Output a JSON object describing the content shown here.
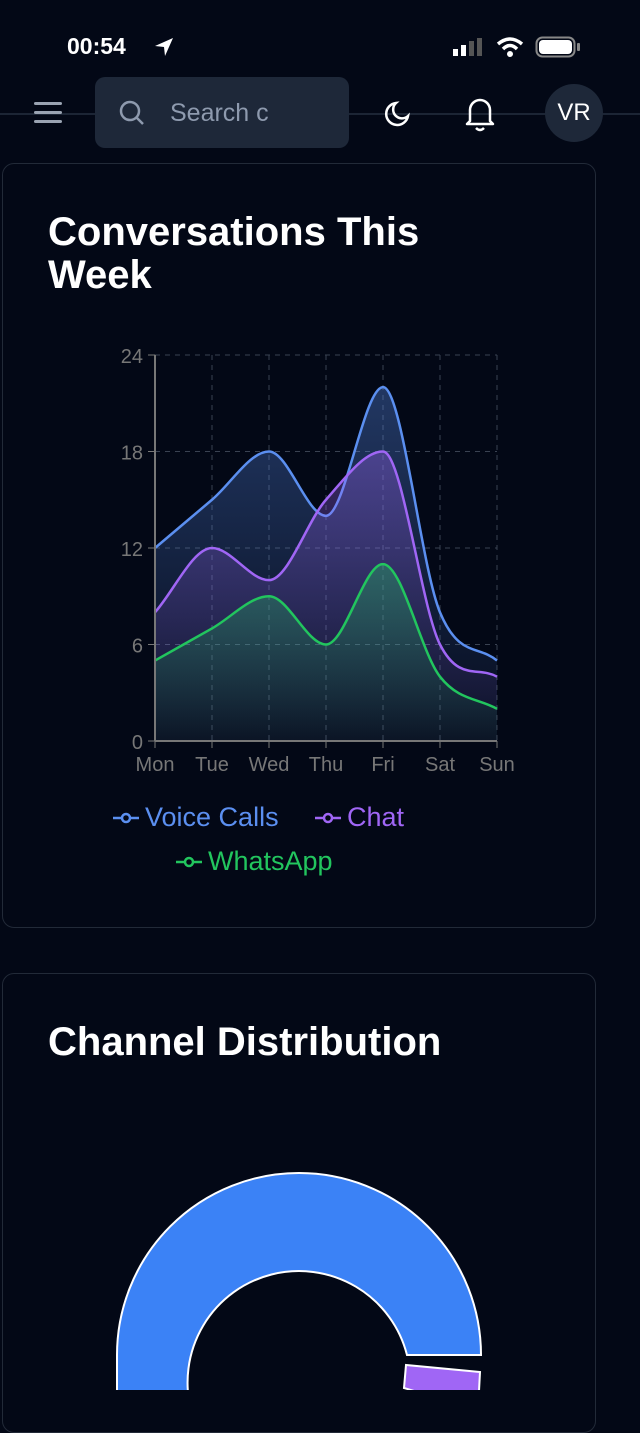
{
  "status_bar": {
    "time": "00:54"
  },
  "header": {
    "search_placeholder": "Search c",
    "avatar_initials": "VR"
  },
  "conversations_card": {
    "title": "Conversations This Week"
  },
  "channel_card": {
    "title": "Channel Distribution"
  },
  "colors": {
    "voice": "#3b82f6",
    "chat": "#a066f5",
    "whatsapp": "#22c55e",
    "background": "#030816"
  },
  "chart_data": [
    {
      "type": "area",
      "title": "Conversations This Week",
      "categories": [
        "Mon",
        "Tue",
        "Wed",
        "Thu",
        "Fri",
        "Sat",
        "Sun"
      ],
      "yticks": [
        "0",
        "6",
        "12",
        "18",
        "24"
      ],
      "ylim": [
        0,
        24
      ],
      "grid": true,
      "legend": "bottom",
      "series": [
        {
          "name": "Voice Calls",
          "color": "#5b8ff0",
          "values": [
            12,
            15,
            18,
            14,
            22,
            8,
            5
          ]
        },
        {
          "name": "Chat",
          "color": "#a066f5",
          "values": [
            8,
            12,
            10,
            15,
            18,
            6,
            4
          ]
        },
        {
          "name": "WhatsApp",
          "color": "#22c55e",
          "values": [
            5,
            7,
            9,
            6,
            11,
            4,
            2
          ]
        }
      ]
    },
    {
      "type": "pie",
      "title": "Channel Distribution",
      "colors": [
        "#3b82f6",
        "#a066f5"
      ]
    }
  ]
}
